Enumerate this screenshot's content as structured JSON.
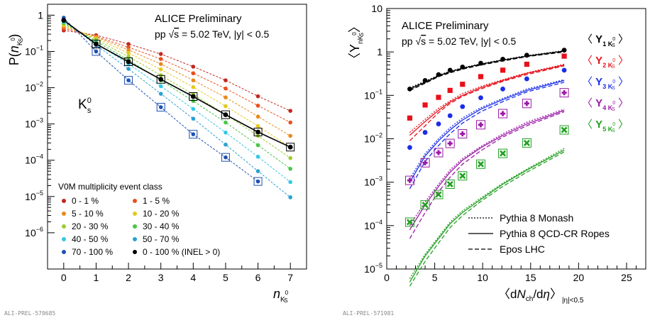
{
  "chart_data": [
    {
      "type": "scatter",
      "title": "ALICE Preliminary",
      "subtitle_parts": [
        "pp ",
        "√",
        "s",
        " = 5.02 TeV, |y| < 0.5"
      ],
      "ylabel_parts": [
        "P(",
        "n",
        "K",
        "0",
        "S",
        ")"
      ],
      "xlabel_parts": [
        "n",
        "K",
        "0",
        "S"
      ],
      "species_parts": [
        "K",
        "0",
        "s"
      ],
      "xlim": [
        -0.5,
        7.5
      ],
      "ylim": [
        1e-07,
        2
      ],
      "yscale": "log",
      "x_ticks": [
        "0",
        "1",
        "2",
        "3",
        "4",
        "5",
        "6",
        "7"
      ],
      "y_ticks": [
        {
          "value": 1,
          "label": "1"
        },
        {
          "value": 0.1,
          "base": "10",
          "exp": "−1"
        },
        {
          "value": 0.01,
          "base": "10",
          "exp": "−2"
        },
        {
          "value": 0.001,
          "base": "10",
          "exp": "−3"
        },
        {
          "value": 0.0001,
          "base": "10",
          "exp": "−4"
        },
        {
          "value": 1e-05,
          "base": "10",
          "exp": "−5"
        },
        {
          "value": 1e-06,
          "base": "10",
          "exp": "−6"
        }
      ],
      "legend_title": "V0M multiplicity event class",
      "legend_position": "bottom-left",
      "x": [
        0,
        1,
        2,
        3,
        4,
        5,
        6,
        7
      ],
      "series": [
        {
          "name": "0 - 1 %",
          "color": "#c0281e",
          "values": [
            0.38,
            0.28,
            0.16,
            0.085,
            0.038,
            0.016,
            0.0058,
            0.0023
          ]
        },
        {
          "name": "1 - 5 %",
          "color": "#e8501c",
          "values": [
            0.43,
            0.26,
            0.13,
            0.062,
            0.025,
            0.0095,
            0.0032,
            0.0011
          ]
        },
        {
          "name": "5 - 10 %",
          "color": "#e68a1c",
          "values": [
            0.48,
            0.25,
            0.11,
            0.045,
            0.016,
            0.0054,
            0.0016,
            0.00047
          ]
        },
        {
          "name": "10 - 20 %",
          "color": "#e6c81c",
          "values": [
            0.53,
            0.23,
            0.09,
            0.032,
            0.0104,
            0.0031,
            0.00087,
            0.00023
          ]
        },
        {
          "name": "20 - 30 %",
          "color": "#9ccc32",
          "values": [
            0.58,
            0.21,
            0.072,
            0.022,
            0.0066,
            0.0018,
            0.00047,
            0.000115
          ]
        },
        {
          "name": "30 - 40 %",
          "color": "#46c846",
          "values": [
            0.62,
            0.19,
            0.058,
            0.016,
            0.0043,
            0.0011,
            0.00026,
            5.8e-05
          ]
        },
        {
          "name": "40 - 50 %",
          "color": "#32c8e6",
          "values": [
            0.66,
            0.17,
            0.045,
            0.011,
            0.0026,
            0.00058,
            0.000125,
            2.5e-05
          ]
        },
        {
          "name": "50 - 70 %",
          "color": "#28a0d2",
          "values": [
            0.72,
            0.15,
            0.033,
            0.0068,
            0.0014,
            0.00027,
            5e-05,
            9.5e-06
          ]
        },
        {
          "name": "70 - 100 %",
          "color": "#1e50b4",
          "values": [
            0.85,
            0.1,
            0.016,
            0.0029,
            0.00052,
            0.00012,
            2.6e-05
          ]
        },
        {
          "name": "0 - 100 % (INEL > 0)",
          "color": "#000000",
          "values": [
            0.72,
            0.16,
            0.052,
            0.017,
            0.0057,
            0.0018,
            0.0006,
            0.00023
          ]
        }
      ]
    },
    {
      "type": "scatter",
      "title": "ALICE Preliminary",
      "subtitle_parts": [
        "pp ",
        "√",
        "s",
        " = 5.02 TeV, |y| < 0.5"
      ],
      "ylabel_parts": [
        "〈",
        "Y",
        "n",
        "K",
        "0",
        "S",
        "〉"
      ],
      "xlabel_parts": [
        "〈d",
        "N",
        "ch",
        "/d",
        "η",
        "〉",
        "|η|<0.5"
      ],
      "xlim": [
        0,
        27
      ],
      "ylim": [
        1e-05,
        10
      ],
      "yscale": "log",
      "x_ticks": [
        "0",
        "5",
        "10",
        "15",
        "20",
        "25"
      ],
      "y_ticks": [
        {
          "value": 10,
          "label": "10"
        },
        {
          "value": 1,
          "label": "1"
        },
        {
          "value": 0.1,
          "base": "10",
          "exp": "−1"
        },
        {
          "value": 0.01,
          "base": "10",
          "exp": "−2"
        },
        {
          "value": 0.001,
          "base": "10",
          "exp": "−3"
        },
        {
          "value": 0.0001,
          "base": "10",
          "exp": "−4"
        },
        {
          "value": 1e-05,
          "base": "10",
          "exp": "−5"
        }
      ],
      "legend_position": "bottom-center",
      "models": [
        {
          "name": "Pythia 8 Monash",
          "style": "dotted"
        },
        {
          "name": "Pythia 8 QCD-CR Ropes",
          "style": "solid"
        },
        {
          "name": "Epos LHC",
          "style": "dashed"
        }
      ],
      "x": [
        2.4,
        4.0,
        5.4,
        6.6,
        7.9,
        9.8,
        12.1,
        14.6,
        18.5
      ],
      "series": [
        {
          "name": "Y1",
          "label_parts": [
            "〈 ",
            "Y",
            "1 K",
            "0",
            "S",
            " 〉"
          ],
          "color": "#000000",
          "marker": "circle",
          "values": [
            0.14,
            0.22,
            0.3,
            0.38,
            0.45,
            0.55,
            0.68,
            0.84,
            1.1
          ],
          "models": {
            "solid": [
              0.14,
              0.2,
              0.28,
              0.35,
              0.42,
              0.52,
              0.65,
              0.8,
              1.05
            ],
            "dashed": [
              0.13,
              0.19,
              0.27,
              0.33,
              0.4,
              0.5,
              0.62,
              0.78,
              1.0
            ],
            "dotted": [
              0.15,
              0.21,
              0.29,
              0.36,
              0.43,
              0.53,
              0.66,
              0.82,
              1.07
            ]
          }
        },
        {
          "name": "Y2",
          "label_parts": [
            "〈 ",
            "Y",
            "2 K",
            "0",
            "S",
            " 〉"
          ],
          "color": "#e8101a",
          "marker": "square",
          "values": [
            0.03,
            0.06,
            0.09,
            0.13,
            0.18,
            0.27,
            0.38,
            0.52,
            0.8
          ],
          "models": {
            "solid": [
              0.012,
              0.025,
              0.045,
              0.07,
              0.1,
              0.15,
              0.22,
              0.32,
              0.5
            ],
            "dashed": [
              0.009,
              0.02,
              0.04,
              0.065,
              0.095,
              0.14,
              0.21,
              0.3,
              0.48
            ],
            "dotted": [
              0.014,
              0.028,
              0.05,
              0.075,
              0.11,
              0.16,
              0.23,
              0.33,
              0.52
            ]
          }
        },
        {
          "name": "Y3",
          "label_parts": [
            "〈 ",
            "Y",
            "3 K",
            "0",
            "S",
            " 〉"
          ],
          "color": "#1a2ee8",
          "marker": "circle",
          "values": [
            0.0063,
            0.014,
            0.022,
            0.034,
            0.055,
            0.088,
            0.14,
            0.24,
            0.38
          ],
          "models": {
            "solid": [
              0.001,
              0.004,
              0.009,
              0.016,
              0.027,
              0.048,
              0.08,
              0.13,
              0.22
            ],
            "dashed": [
              0.0007,
              0.003,
              0.007,
              0.013,
              0.023,
              0.042,
              0.072,
              0.12,
              0.2
            ],
            "dotted": [
              0.0012,
              0.0045,
              0.01,
              0.018,
              0.03,
              0.052,
              0.085,
              0.14,
              0.23
            ]
          }
        },
        {
          "name": "Y4",
          "label_parts": [
            "〈 ",
            "Y",
            "4 K",
            "0",
            "S",
            " 〉"
          ],
          "color": "#9a1aa6",
          "marker": "cross",
          "values": [
            0.0011,
            0.0028,
            0.0048,
            0.0078,
            0.013,
            0.021,
            0.038,
            0.065,
            0.115
          ],
          "models": {
            "solid": [
              8e-05,
              0.0003,
              0.0008,
              0.0017,
              0.0032,
              0.0062,
              0.012,
              0.022,
              0.045
            ],
            "dashed": [
              5e-05,
              0.0002,
              0.0006,
              0.0013,
              0.0026,
              0.0053,
              0.011,
              0.02,
              0.042
            ],
            "dotted": [
              0.0001,
              0.00035,
              0.0009,
              0.0019,
              0.0035,
              0.0066,
              0.013,
              0.024,
              0.048
            ]
          }
        },
        {
          "name": "Y5",
          "label_parts": [
            "〈 ",
            "Y",
            "5 K",
            "0",
            "S",
            " 〉"
          ],
          "color": "#22a022",
          "marker": "x",
          "values": [
            0.00012,
            0.0003,
            0.00052,
            0.0009,
            0.0014,
            0.0026,
            0.0046,
            0.008,
            0.016
          ],
          "models": {
            "solid": [
              5e-06,
              2e-05,
              5e-05,
              0.00011,
              0.0002,
              0.0004,
              0.0009,
              0.0019,
              0.0055
            ],
            "dashed": [
              4e-06,
              1.5e-05,
              4e-05,
              9e-05,
              0.00017,
              0.00036,
              0.0008,
              0.0017,
              0.005
            ],
            "dotted": [
              6e-06,
              2.2e-05,
              5.5e-05,
              0.00012,
              0.00022,
              0.00043,
              0.00095,
              0.002,
              0.006
            ]
          }
        }
      ]
    }
  ],
  "footer": {
    "left": "ALI-PREL-570685",
    "right": "ALI-PREL-571981"
  }
}
